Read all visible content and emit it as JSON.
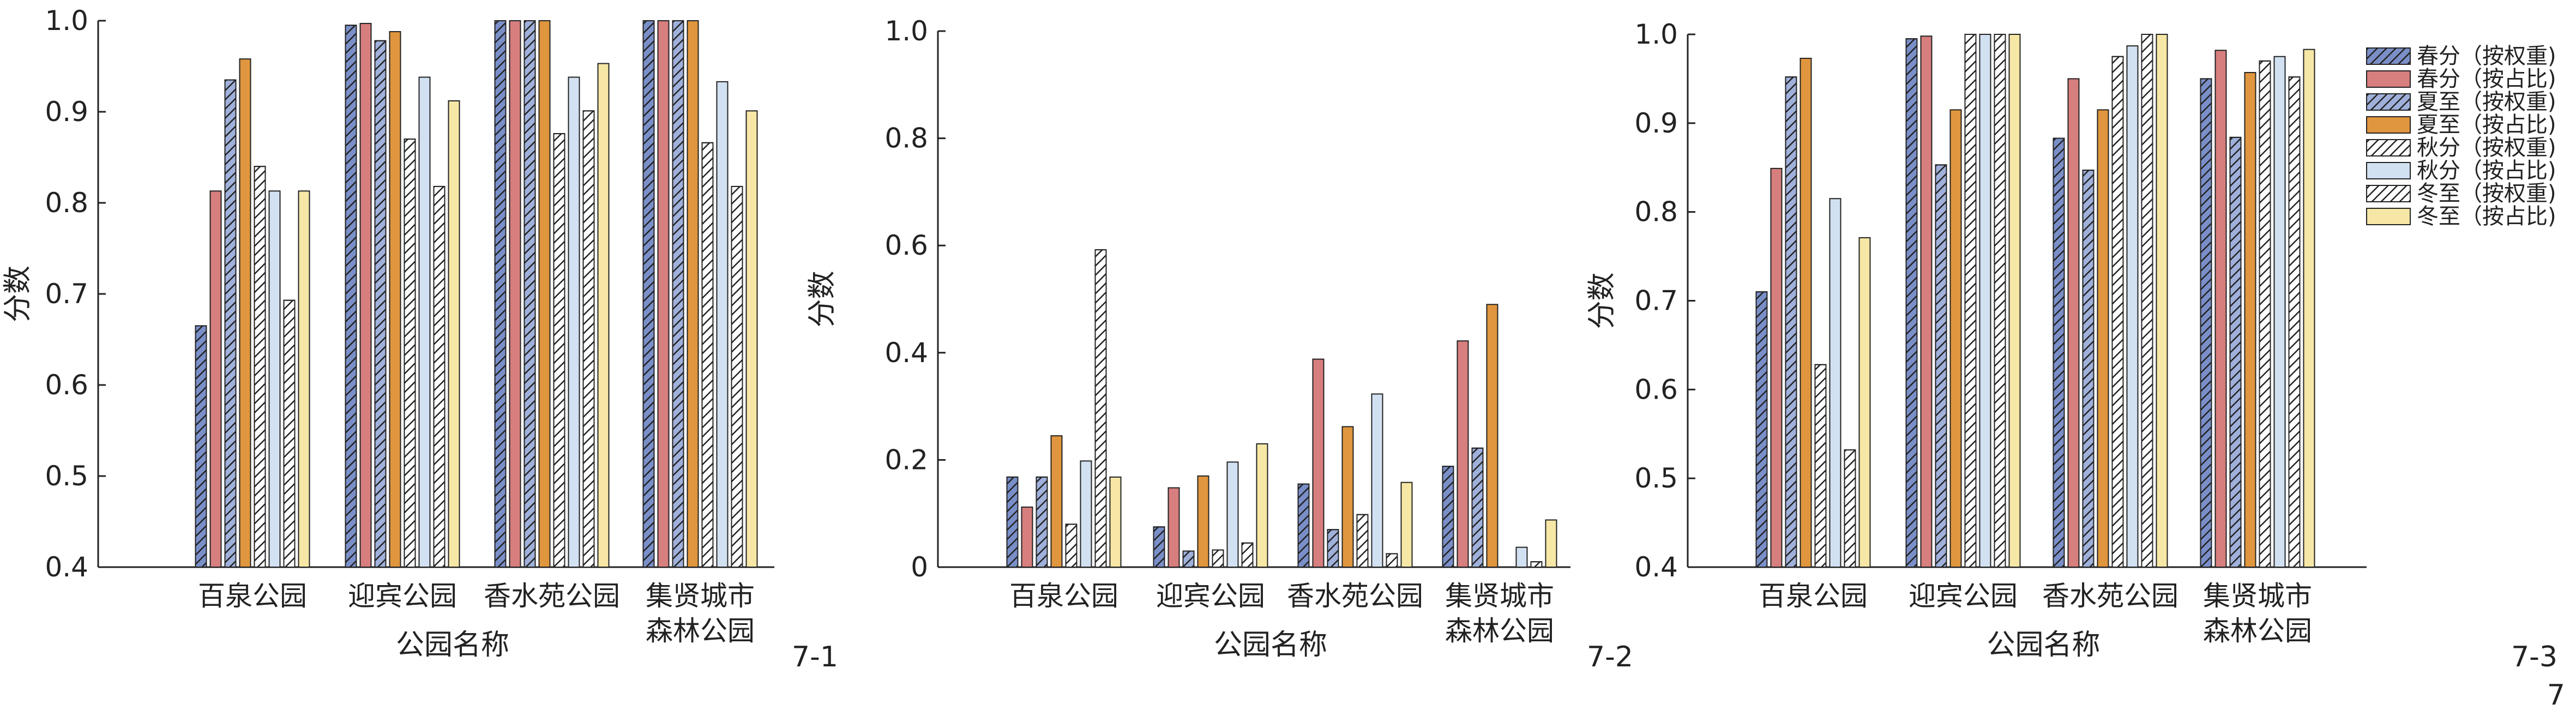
{
  "figure_number": "7",
  "legend": {
    "entries": [
      {
        "label": "春分（按权重)",
        "color": "#7A8FC8",
        "hatch": true
      },
      {
        "label": "春分（按占比)",
        "color": "#D77E7E",
        "hatch": false
      },
      {
        "label": "夏至（按权重)",
        "color": "#9FB0DA",
        "hatch": true
      },
      {
        "label": "夏至（按占比)",
        "color": "#E0963E",
        "hatch": false
      },
      {
        "label": "秋分（按权重)",
        "color": "#FFFFFF",
        "hatch": true
      },
      {
        "label": "秋分（按占比)",
        "color": "#D2E1F2",
        "hatch": false
      },
      {
        "label": "冬至（按权重)",
        "color": "#FFFFFF",
        "hatch": true
      },
      {
        "label": "冬至（按占比)",
        "color": "#F6E7A6",
        "hatch": false
      }
    ]
  },
  "chart_data": [
    {
      "type": "bar",
      "panel_label": "7-1",
      "xlabel": "公园名称",
      "ylabel": "分数",
      "ylim": [
        0.4,
        1.0
      ],
      "yticks": [
        "0.4",
        "0.5",
        "0.6",
        "0.7",
        "0.8",
        "0.9",
        "1.0"
      ],
      "categories": [
        [
          "百泉公园"
        ],
        [
          "迎宾公园"
        ],
        [
          "香水苑公园"
        ],
        [
          "集贤城市",
          "森林公园"
        ]
      ],
      "series": [
        {
          "name": "春分（按权重)",
          "values": [
            0.665,
            0.995,
            1.0,
            1.0
          ]
        },
        {
          "name": "春分（按占比)",
          "values": [
            0.813,
            0.997,
            1.0,
            1.0
          ]
        },
        {
          "name": "夏至（按权重)",
          "values": [
            0.935,
            0.978,
            1.0,
            1.0
          ]
        },
        {
          "name": "夏至（按占比)",
          "values": [
            0.958,
            0.988,
            1.0,
            1.0
          ]
        },
        {
          "name": "秋分（按权重)",
          "values": [
            0.84,
            0.87,
            0.876,
            0.866
          ]
        },
        {
          "name": "秋分（按占比)",
          "values": [
            0.813,
            0.938,
            0.938,
            0.933
          ]
        },
        {
          "name": "冬至（按权重)",
          "values": [
            0.693,
            0.818,
            0.901,
            0.818
          ]
        },
        {
          "name": "冬至（按占比)",
          "values": [
            0.813,
            0.912,
            0.953,
            0.901
          ]
        }
      ]
    },
    {
      "type": "bar",
      "panel_label": "7-2",
      "xlabel": "公园名称",
      "ylabel": "分数",
      "ylim": [
        0,
        1.0
      ],
      "yticks": [
        "0",
        "0.2",
        "0.4",
        "0.6",
        "0.8",
        "1.0"
      ],
      "categories": [
        [
          "百泉公园"
        ],
        [
          "迎宾公园"
        ],
        [
          "香水苑公园"
        ],
        [
          "集贤城市",
          "森林公园"
        ]
      ],
      "series": [
        {
          "name": "春分（按权重)",
          "values": [
            0.168,
            0.075,
            0.155,
            0.188
          ]
        },
        {
          "name": "春分（按占比)",
          "values": [
            0.112,
            0.148,
            0.388,
            0.422
          ]
        },
        {
          "name": "夏至（按权重)",
          "values": [
            0.168,
            0.03,
            0.07,
            0.222
          ]
        },
        {
          "name": "夏至（按占比)",
          "values": [
            0.245,
            0.17,
            0.262,
            0.49
          ]
        },
        {
          "name": "秋分（按权重)",
          "values": [
            0.08,
            0.032,
            0.098,
            0.0
          ]
        },
        {
          "name": "秋分（按占比)",
          "values": [
            0.198,
            0.196,
            0.323,
            0.037
          ]
        },
        {
          "name": "冬至（按权重)",
          "values": [
            0.592,
            0.045,
            0.025,
            0.01
          ]
        },
        {
          "name": "冬至（按占比)",
          "values": [
            0.168,
            0.23,
            0.158,
            0.088
          ]
        }
      ]
    },
    {
      "type": "bar",
      "panel_label": "7-3",
      "xlabel": "公园名称",
      "ylabel": "分数",
      "ylim": [
        0.4,
        1.0
      ],
      "yticks": [
        "0.4",
        "0.5",
        "0.6",
        "0.7",
        "0.8",
        "0.9",
        "1.0"
      ],
      "categories": [
        [
          "百泉公园"
        ],
        [
          "迎宾公园"
        ],
        [
          "香水苑公园"
        ],
        [
          "集贤城市",
          "森林公园"
        ]
      ],
      "series": [
        {
          "name": "春分（按权重)",
          "values": [
            0.71,
            0.995,
            0.883,
            0.95
          ]
        },
        {
          "name": "春分（按占比)",
          "values": [
            0.849,
            0.998,
            0.95,
            0.982
          ]
        },
        {
          "name": "夏至（按权重)",
          "values": [
            0.952,
            0.853,
            0.847,
            0.884
          ]
        },
        {
          "name": "夏至（按占比)",
          "values": [
            0.973,
            0.915,
            0.915,
            0.957
          ]
        },
        {
          "name": "秋分（按权重)",
          "values": [
            0.628,
            1.0,
            0.975,
            0.97
          ]
        },
        {
          "name": "秋分（按占比)",
          "values": [
            0.815,
            1.0,
            0.987,
            0.975
          ]
        },
        {
          "name": "冬至（按权重)",
          "values": [
            0.532,
            1.0,
            1.0,
            0.952
          ]
        },
        {
          "name": "冬至（按占比)",
          "values": [
            0.771,
            1.0,
            1.0,
            0.983
          ]
        }
      ]
    }
  ]
}
